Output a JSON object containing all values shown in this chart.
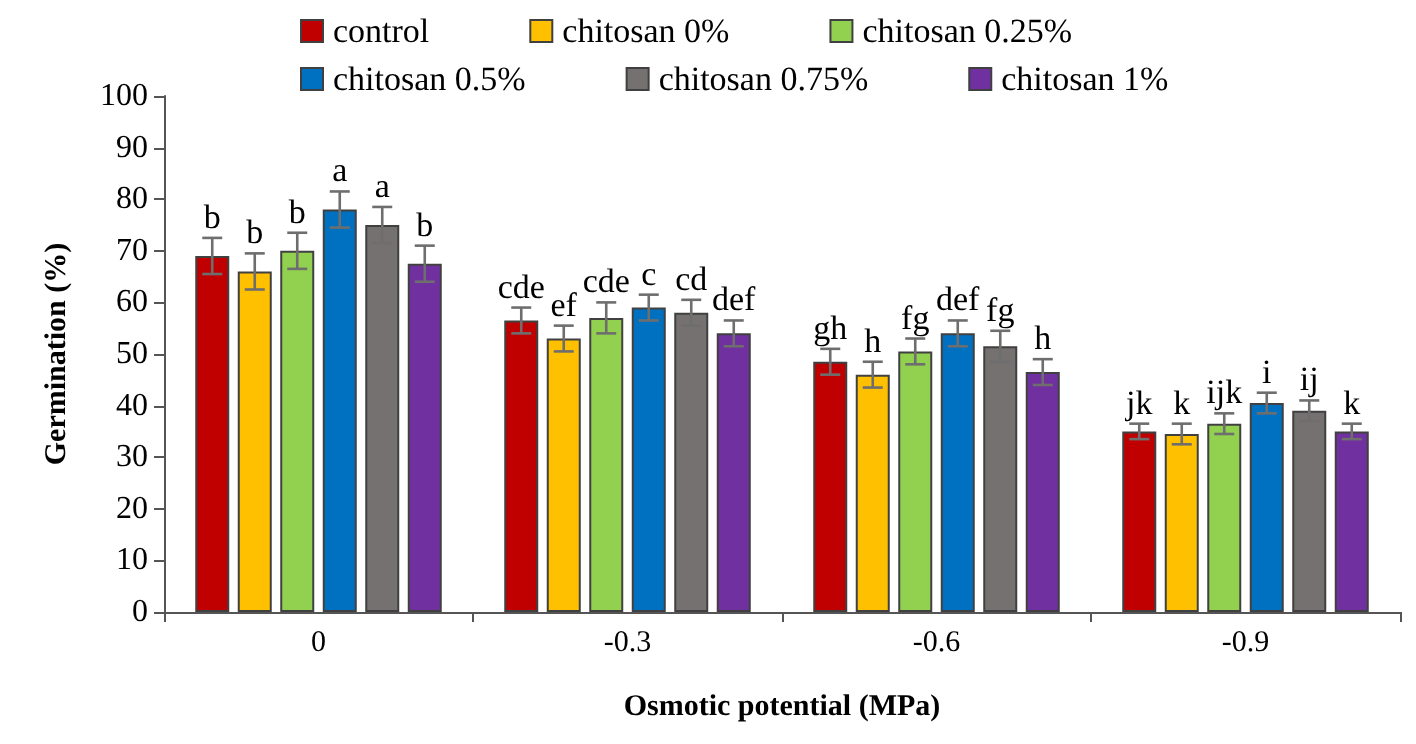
{
  "chart_data": {
    "type": "bar",
    "xlabel": "Osmotic potential (MPa)",
    "ylabel": "Germination (%)",
    "categories": [
      "0",
      "-0.3",
      "-0.6",
      "-0.9"
    ],
    "series": [
      {
        "name": "control",
        "color": "#c00000",
        "values": [
          69,
          56.5,
          48.5,
          35
        ],
        "errors": [
          3.5,
          2.5,
          2.5,
          1.5
        ],
        "value_labels": [
          "b",
          "cde",
          "gh",
          "jk"
        ]
      },
      {
        "name": "chitosan 0%",
        "color": "#ffc000",
        "values": [
          66,
          53,
          46,
          34.5
        ],
        "errors": [
          3.5,
          2.5,
          2.5,
          2
        ],
        "value_labels": [
          "b",
          "ef",
          "h",
          "k"
        ]
      },
      {
        "name": "chitosan 0.25%",
        "color": "#92d050",
        "values": [
          70,
          57,
          50.5,
          36.5
        ],
        "errors": [
          3.5,
          3,
          2.5,
          2
        ],
        "value_labels": [
          "b",
          "cde",
          "fg",
          "ijk"
        ]
      },
      {
        "name": "chitosan 0.5%",
        "color": "#0070c0",
        "values": [
          78,
          59,
          54,
          40.5
        ],
        "errors": [
          3.5,
          2.5,
          2.5,
          2
        ],
        "value_labels": [
          "a",
          "c",
          "def",
          "i"
        ]
      },
      {
        "name": "chitosan 0.75%",
        "color": "#767171",
        "values": [
          75,
          58,
          51.5,
          39
        ],
        "errors": [
          3.5,
          2.5,
          3,
          2
        ],
        "value_labels": [
          "a",
          "cd",
          "fg",
          "ij"
        ]
      },
      {
        "name": "chitosan 1%",
        "color": "#7030a0",
        "values": [
          67.5,
          54,
          46.5,
          35
        ],
        "errors": [
          3.5,
          2.5,
          2.5,
          1.5
        ],
        "value_labels": [
          "b",
          "def",
          "h",
          "k"
        ]
      }
    ],
    "ylim": [
      0,
      100
    ],
    "yticks": [
      0,
      10,
      20,
      30,
      40,
      50,
      60,
      70,
      80,
      90,
      100
    ],
    "grid": false,
    "legend": "top"
  }
}
